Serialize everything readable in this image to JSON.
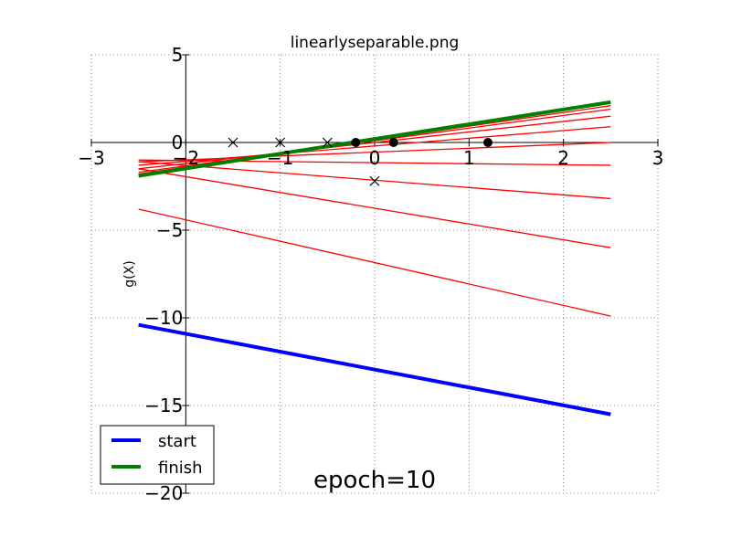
{
  "chart_data": {
    "type": "line",
    "title": "linearlyseparable.png",
    "xlabel": "",
    "ylabel": "g(X)",
    "xlim": [
      -3,
      3
    ],
    "ylim": [
      -20,
      5
    ],
    "x_ticks": [
      -3,
      -2,
      -1,
      0,
      1,
      2,
      3
    ],
    "x_tick_labels": [
      "−3",
      "−2",
      "−1",
      "0",
      "1",
      "2",
      "3"
    ],
    "y_ticks": [
      5,
      0,
      -5,
      -10,
      -15,
      -20
    ],
    "y_tick_labels": [
      "5",
      "0",
      "−5",
      "−10",
      "−15",
      "−20"
    ],
    "grid": true,
    "legend_position": "lower-left",
    "annotation": "epoch=10",
    "series": [
      {
        "name": "start",
        "color": "#0000ff",
        "kind": "line",
        "x": [
          -2.5,
          2.5
        ],
        "y": [
          -10.4,
          -15.5
        ]
      },
      {
        "name": "finish",
        "color": "#008000",
        "kind": "line",
        "x": [
          -2.5,
          2.5
        ],
        "y": [
          -1.9,
          2.3
        ]
      }
    ],
    "intermediate_lines": {
      "color": "#ff0000",
      "lines": [
        {
          "x": [
            -2.5,
            2.5
          ],
          "y": [
            -3.8,
            -9.9
          ]
        },
        {
          "x": [
            -2.5,
            2.5
          ],
          "y": [
            -1.5,
            -6.0
          ]
        },
        {
          "x": [
            -2.5,
            2.5
          ],
          "y": [
            -1.1,
            -3.2
          ]
        },
        {
          "x": [
            -2.5,
            2.5
          ],
          "y": [
            -1.0,
            -1.3
          ]
        },
        {
          "x": [
            -2.5,
            2.5
          ],
          "y": [
            -1.1,
            0.0
          ]
        },
        {
          "x": [
            -2.5,
            2.5
          ],
          "y": [
            -1.3,
            0.9
          ]
        },
        {
          "x": [
            -2.5,
            2.5
          ],
          "y": [
            -1.5,
            1.5
          ]
        },
        {
          "x": [
            -2.5,
            2.5
          ],
          "y": [
            -1.7,
            1.9
          ]
        },
        {
          "x": [
            -2.5,
            2.5
          ],
          "y": [
            -1.8,
            2.1
          ]
        }
      ]
    },
    "points_class_x": {
      "marker": "x",
      "color": "#000000",
      "x": [
        -1.5,
        -1.0,
        -0.5,
        0.0
      ],
      "y": [
        0,
        0,
        0,
        -2.2
      ]
    },
    "points_class_o": {
      "marker": "o",
      "color": "#000000",
      "x": [
        -0.2,
        0.2,
        1.2
      ],
      "y": [
        0,
        0,
        0
      ]
    }
  }
}
